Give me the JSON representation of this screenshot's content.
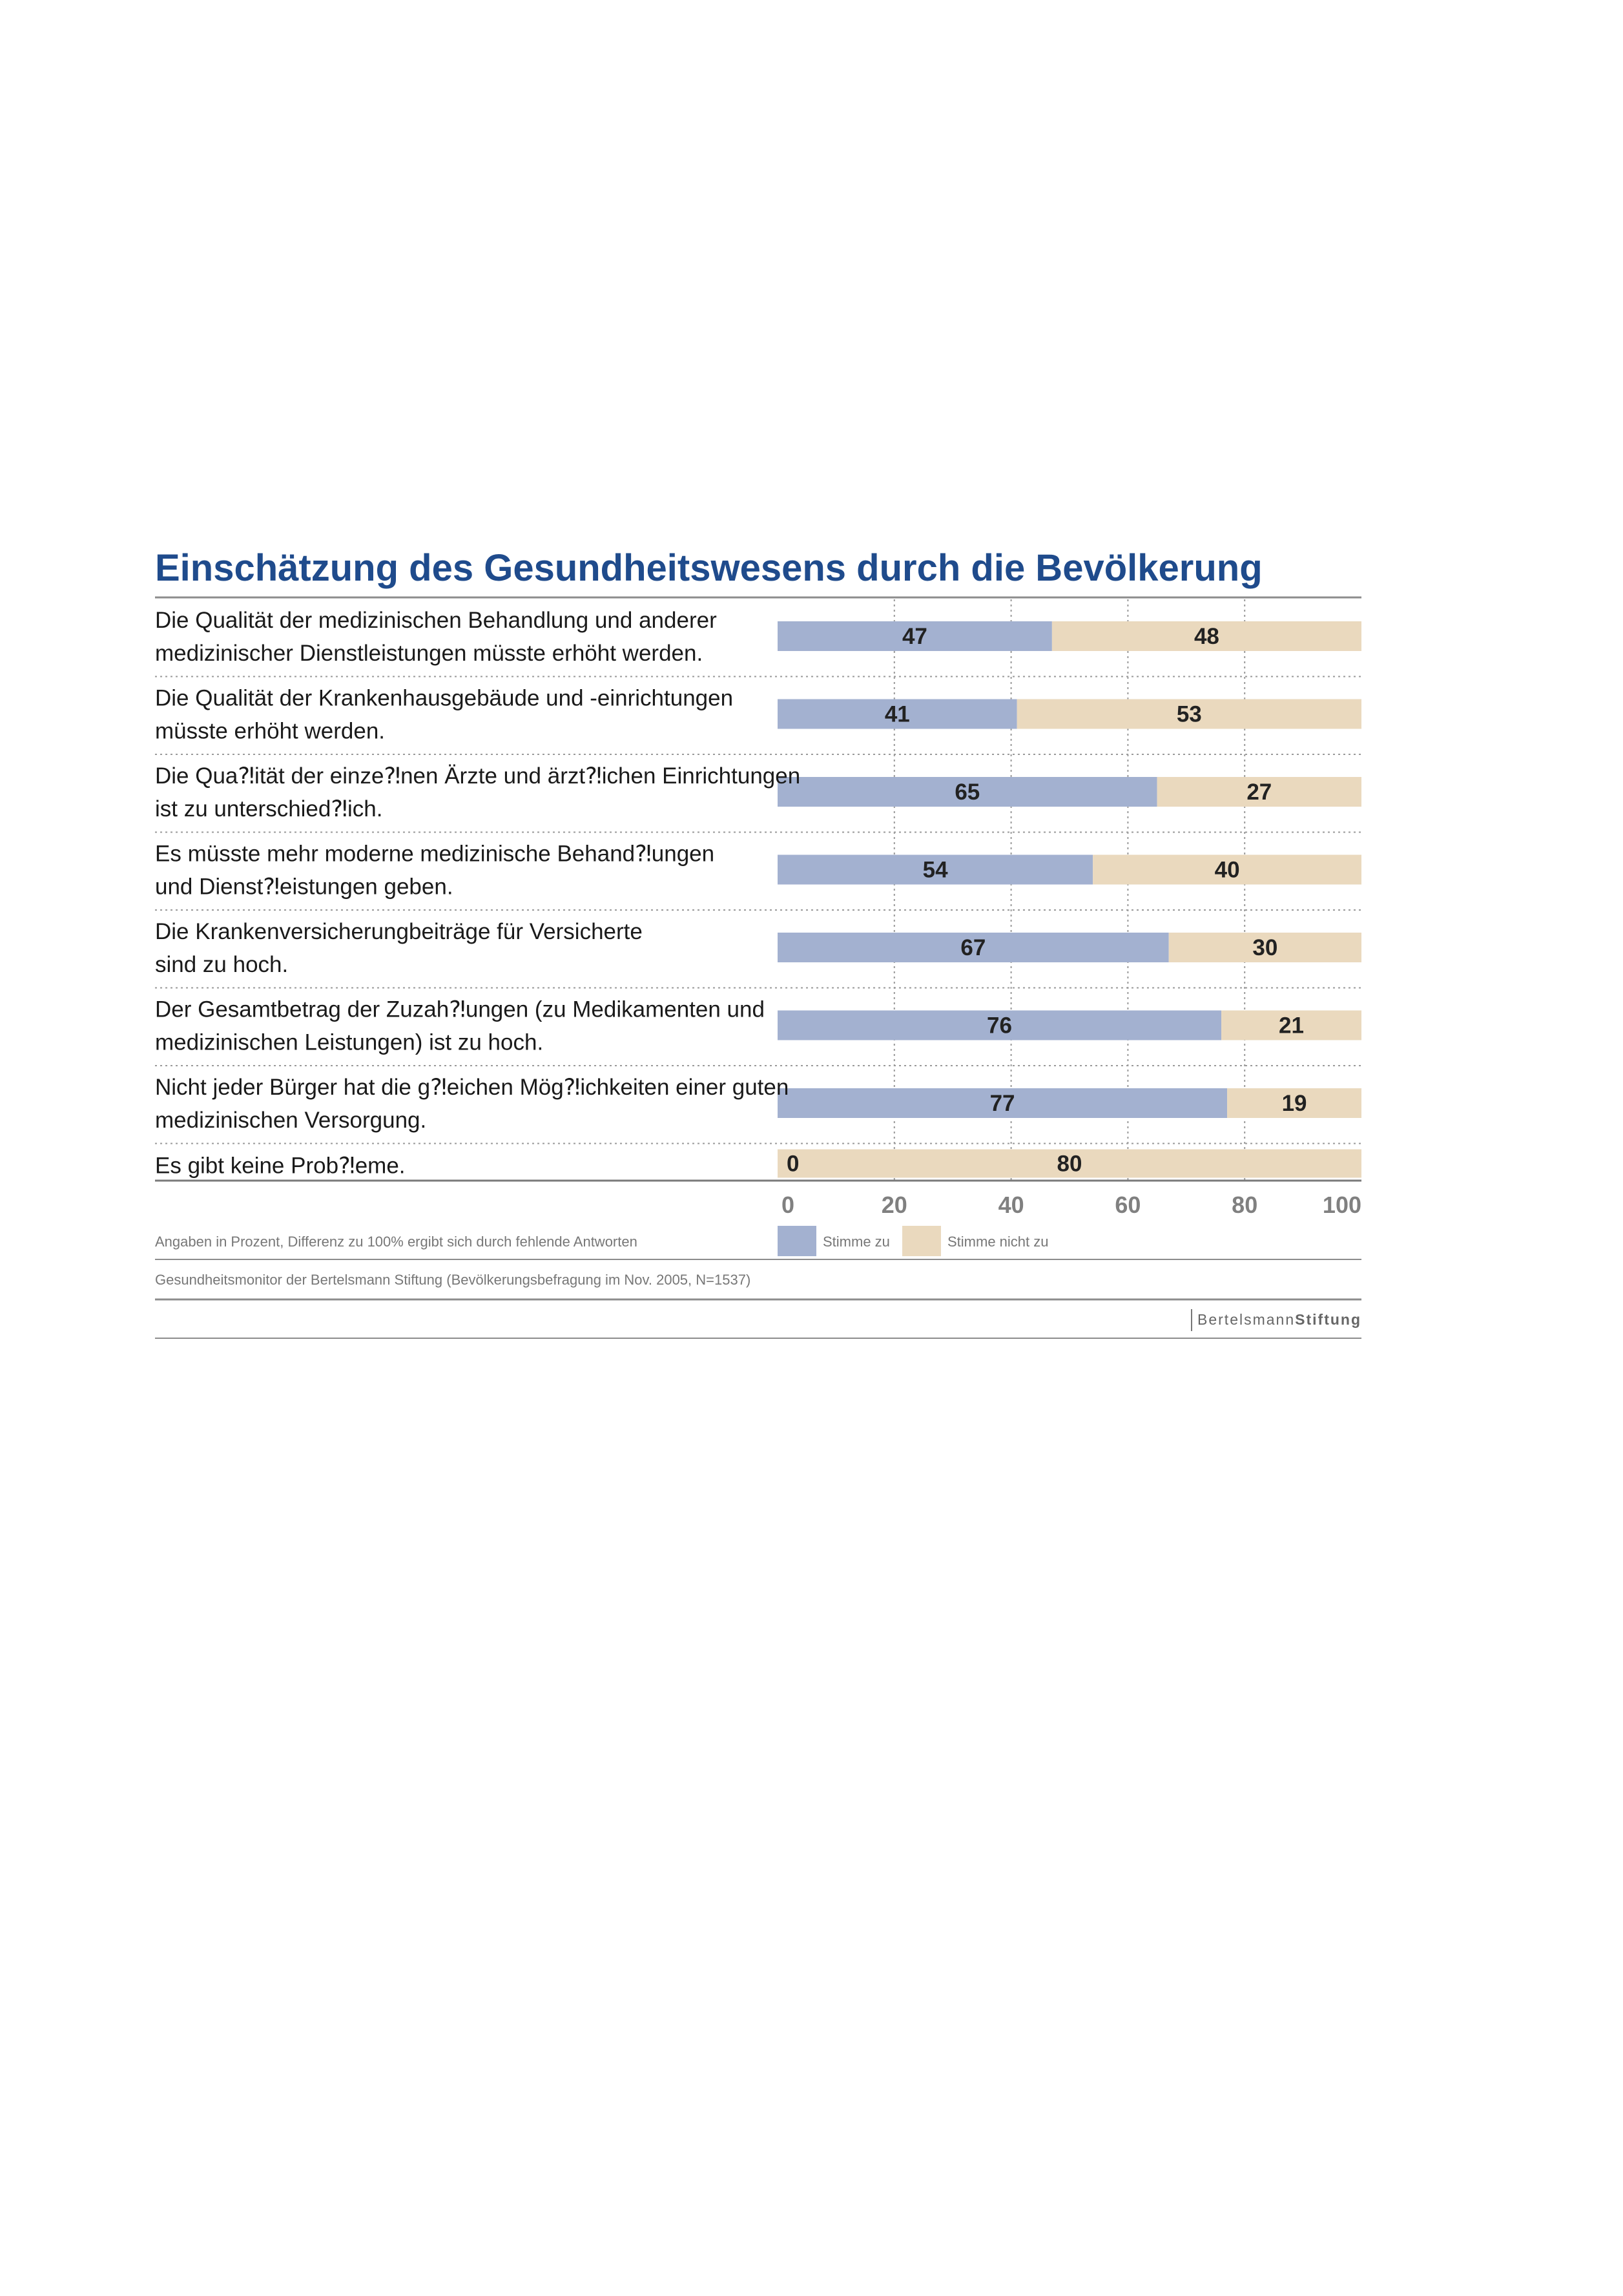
{
  "colors": {
    "title": "#1f4b8c",
    "agree": "#a3b1d0",
    "disagree": "#ead9be",
    "grid": "#9a9a9a",
    "tick": "#808080",
    "rule": "#8c8c8c"
  },
  "chart_data": {
    "type": "bar",
    "orientation": "horizontal",
    "stacked": true,
    "title": "Einschätzung des Gesundheitswesens durch die Bevölkerung",
    "categories": [
      [
        "Die Qualität der medizinischen Behandlung und anderer",
        "medizinischer Dienstleistungen müsste erhöht werden."
      ],
      [
        "Die Qualität der Krankenhausgebäude und -einrichtungen",
        "müsste erhöht werden."
      ],
      [
        "Die Qua⁈ität der einze⁈nen Ärzte und ärzt⁈ichen Einrichtungen",
        "ist zu unterschied⁈ich."
      ],
      [
        "Es müsste mehr moderne medizinische Behand⁈ungen",
        "und Dienst⁈eistungen geben."
      ],
      [
        "Die Krankenversicherungbeiträge für Versicherte",
        "sind zu hoch."
      ],
      [
        "Der Gesamtbetrag der Zuzah⁈ungen (zu Medikamenten und",
        "medizinischen Leistungen) ist zu hoch."
      ],
      [
        "Nicht jeder Bürger hat die g⁈eichen Mög⁈ichkeiten einer guten",
        "medizinischen Versorgung."
      ],
      [
        "Es gibt keine Prob⁈eme."
      ]
    ],
    "series": [
      {
        "name": "Stimme zu",
        "values": [
          47,
          41,
          65,
          54,
          67,
          76,
          77,
          0
        ]
      },
      {
        "name": "Stimme nicht zu",
        "values": [
          48,
          53,
          27,
          40,
          30,
          21,
          19,
          80
        ]
      }
    ],
    "xlim": [
      0,
      100
    ],
    "xticks": [
      0,
      20,
      40,
      60,
      80,
      100
    ],
    "grid": "vertical dotted",
    "legend_position": "bottom"
  },
  "footer": {
    "note": "Angaben in Prozent, Differenz zu 100% ergibt sich durch fehlende Antworten",
    "source": "Gesundheitsmonitor der Bertelsmann Stiftung (Bevölkerungsbefragung im Nov. 2005, N=1537)",
    "logo_regular": "Bertelsmann",
    "logo_bold": "Stiftung"
  }
}
